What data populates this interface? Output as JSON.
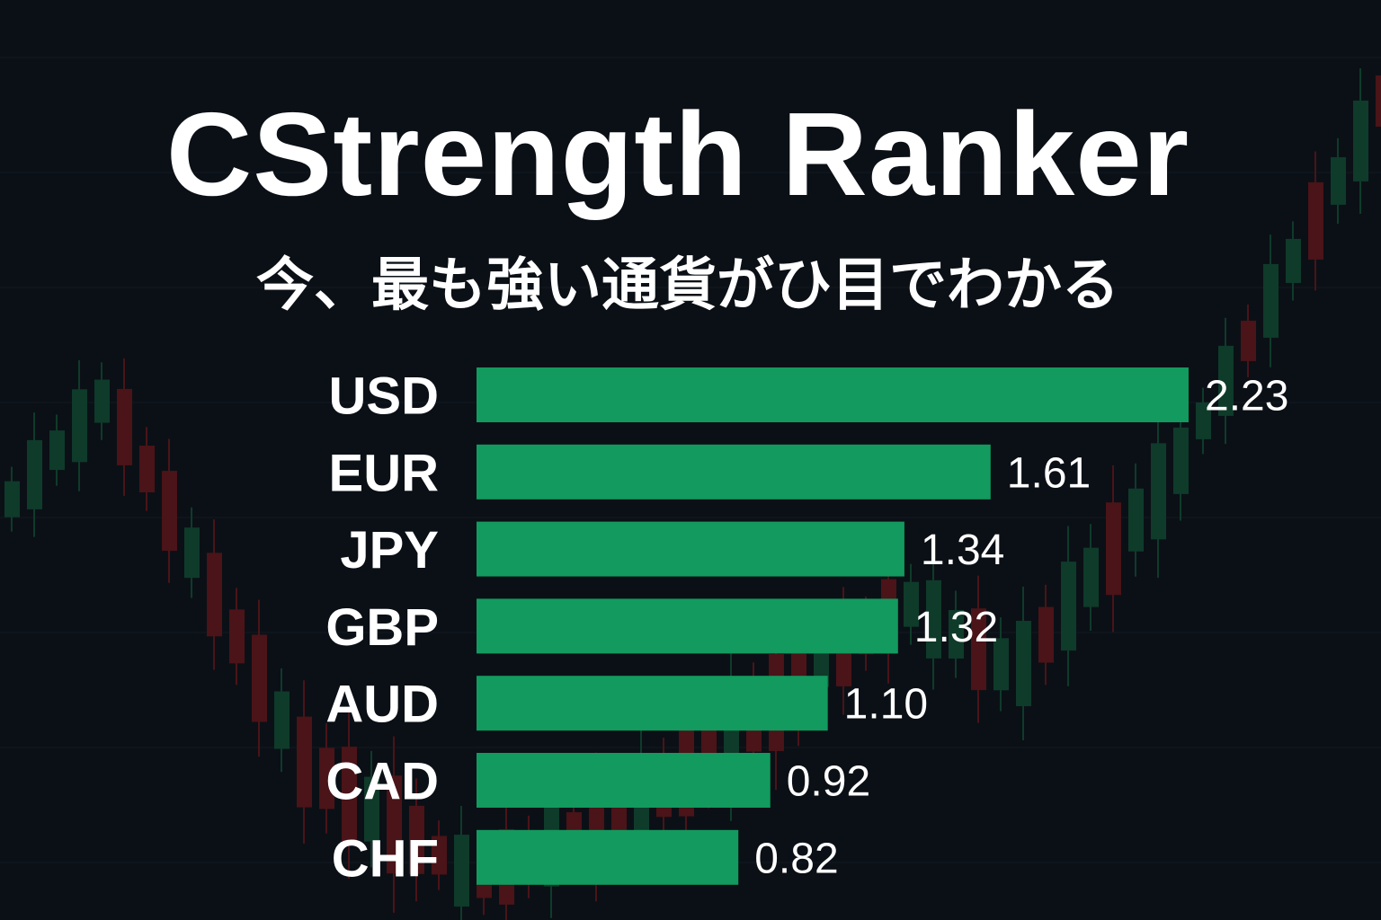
{
  "header": {
    "title": "CStrength Ranker",
    "subtitle": "今、最も強い通貨がひ目でわかる"
  },
  "colors": {
    "background": "#0b1016",
    "bar": "#139a5e",
    "candle_up": "#0f3b2a",
    "candle_down": "#4a1418",
    "text": "#ffffff"
  },
  "chart_data": {
    "type": "bar",
    "orientation": "horizontal",
    "categories": [
      "USD",
      "EUR",
      "JPY",
      "GBP",
      "AUD",
      "CAD",
      "CHF"
    ],
    "values": [
      2.23,
      1.61,
      1.34,
      1.32,
      1.1,
      0.92,
      0.82
    ],
    "value_labels": [
      "2.23",
      "1.61",
      "1.34",
      "1.32",
      "1.10",
      "0.92",
      "0.82"
    ],
    "xlim": [
      0,
      2.23
    ],
    "grid": false,
    "legend": "none"
  }
}
